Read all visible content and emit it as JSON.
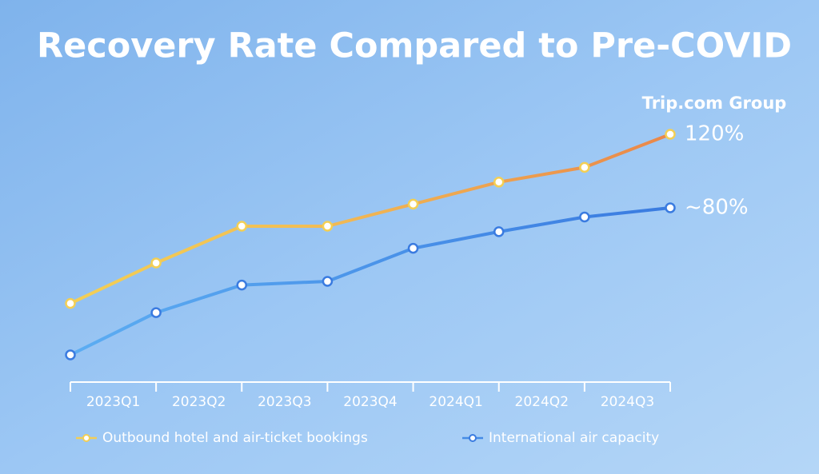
{
  "chart_data": {
    "type": "line",
    "title": "Recovery Rate Compared to Pre-COVID",
    "logo": "Trip.com Group",
    "categories": [
      "2023Q1",
      "2023Q2",
      "2023Q3",
      "2023Q4",
      "2024Q1",
      "2024Q2",
      "2024Q3",
      null
    ],
    "ylim": [
      0,
      130
    ],
    "series": [
      {
        "name": "Outbound hotel and air-ticket bookings",
        "color": "#e9874a",
        "values": [
          28,
          50,
          70,
          70,
          82,
          94,
          102,
          120
        ],
        "value_labels": [
          null,
          null,
          null,
          null,
          null,
          null,
          null,
          "120%"
        ]
      },
      {
        "name": "International air capacity",
        "color": "#3a7be0",
        "values": [
          0,
          23,
          38,
          40,
          58,
          67,
          75,
          80
        ],
        "value_labels": [
          null,
          null,
          null,
          null,
          null,
          null,
          null,
          "~80%"
        ]
      }
    ]
  }
}
